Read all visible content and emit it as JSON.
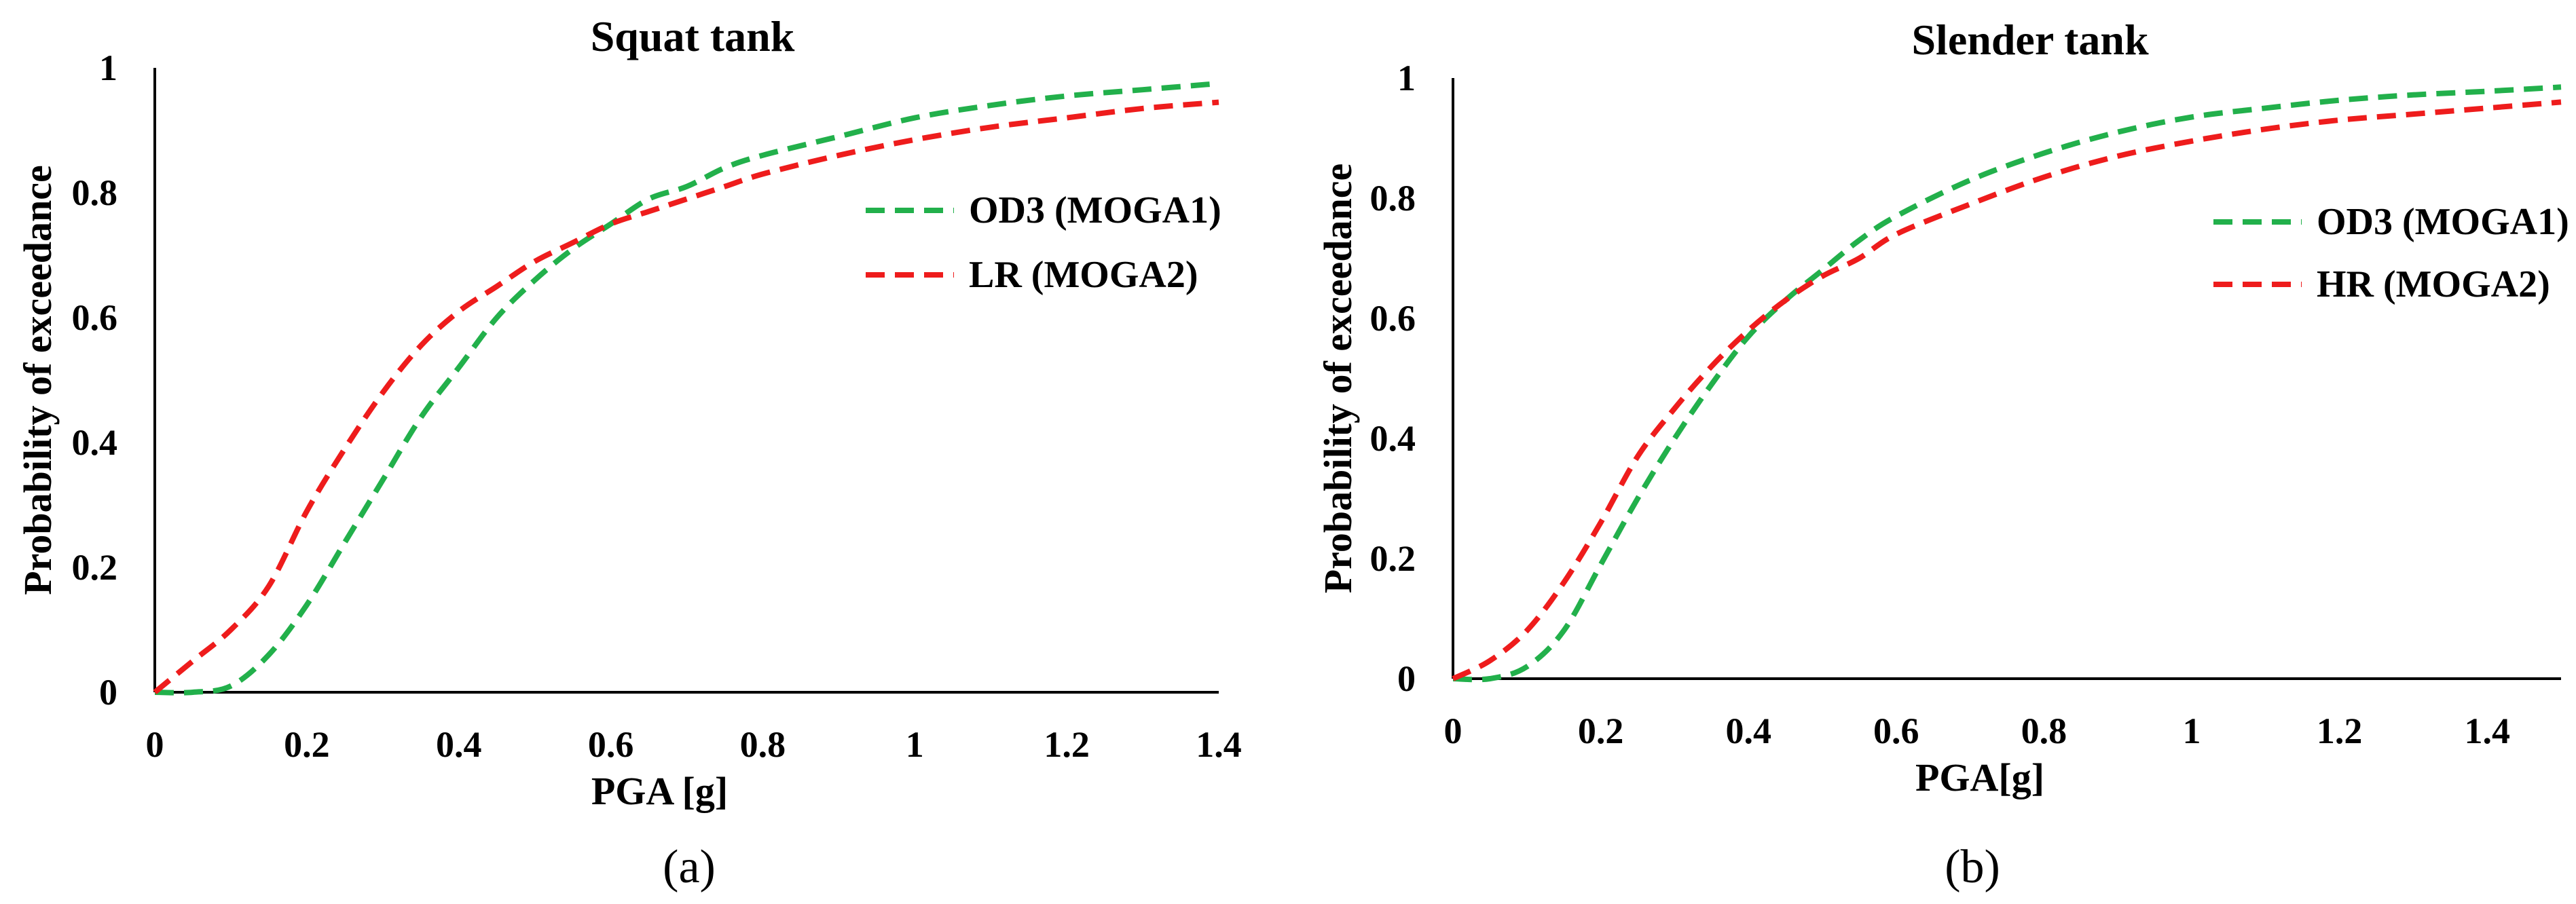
{
  "chart_data": [
    {
      "type": "line",
      "panel_label": "(a)",
      "title": "Squat tank",
      "xlabel": "PGA [g]",
      "ylabel": "Probability of exceedance",
      "xlim": [
        0,
        1.4
      ],
      "ylim": [
        0,
        1
      ],
      "x_ticks": [
        "0",
        "0.2",
        "0.4",
        "0.6",
        "0.8",
        "1",
        "1.2",
        "1.4"
      ],
      "y_ticks": [
        "0",
        "0.2",
        "0.4",
        "0.6",
        "0.8",
        "1"
      ],
      "legend_position": "right",
      "series": [
        {
          "name": "OD3 (MOGA1)",
          "color": "#22b04b",
          "x": [
            0,
            0.05,
            0.1,
            0.15,
            0.2,
            0.25,
            0.3,
            0.35,
            0.4,
            0.45,
            0.5,
            0.55,
            0.6,
            0.65,
            0.7,
            0.75,
            0.8,
            0.9,
            1.0,
            1.1,
            1.2,
            1.3,
            1.4
          ],
          "y": [
            0,
            0.0,
            0.01,
            0.06,
            0.14,
            0.24,
            0.34,
            0.44,
            0.52,
            0.6,
            0.66,
            0.71,
            0.75,
            0.79,
            0.81,
            0.84,
            0.86,
            0.89,
            0.92,
            0.94,
            0.955,
            0.965,
            0.975
          ]
        },
        {
          "name": "LR (MOGA2)",
          "color": "#ee1c1c",
          "x": [
            0,
            0.05,
            0.1,
            0.15,
            0.2,
            0.25,
            0.3,
            0.35,
            0.4,
            0.45,
            0.5,
            0.55,
            0.6,
            0.65,
            0.7,
            0.75,
            0.8,
            0.9,
            1.0,
            1.1,
            1.2,
            1.3,
            1.4
          ],
          "y": [
            0,
            0.05,
            0.1,
            0.17,
            0.29,
            0.39,
            0.48,
            0.555,
            0.61,
            0.65,
            0.69,
            0.72,
            0.75,
            0.77,
            0.79,
            0.81,
            0.83,
            0.86,
            0.885,
            0.905,
            0.92,
            0.935,
            0.945
          ]
        }
      ]
    },
    {
      "type": "line",
      "panel_label": "(b)",
      "title": "Slender tank",
      "xlabel": "PGA[g]",
      "ylabel": "Probability of exceedance",
      "xlim": [
        0,
        1.5
      ],
      "ylim": [
        0,
        1
      ],
      "x_ticks": [
        "0",
        "0.2",
        "0.4",
        "0.6",
        "0.8",
        "1",
        "1.2",
        "1.4"
      ],
      "y_ticks": [
        "0",
        "0.2",
        "0.4",
        "0.6",
        "0.8",
        "1"
      ],
      "legend_position": "right",
      "series": [
        {
          "name": "OD3 (MOGA1)",
          "color": "#22b04b",
          "x": [
            0,
            0.05,
            0.1,
            0.15,
            0.2,
            0.25,
            0.3,
            0.35,
            0.4,
            0.45,
            0.5,
            0.55,
            0.6,
            0.7,
            0.8,
            0.9,
            1.0,
            1.1,
            1.2,
            1.3,
            1.4,
            1.5
          ],
          "y": [
            0,
            0.0,
            0.02,
            0.08,
            0.19,
            0.3,
            0.4,
            0.49,
            0.57,
            0.63,
            0.68,
            0.73,
            0.77,
            0.83,
            0.875,
            0.91,
            0.935,
            0.95,
            0.963,
            0.972,
            0.978,
            0.985
          ]
        },
        {
          "name": "HR (MOGA2)",
          "color": "#ee1c1c",
          "x": [
            0,
            0.05,
            0.1,
            0.15,
            0.2,
            0.25,
            0.3,
            0.35,
            0.4,
            0.45,
            0.5,
            0.55,
            0.6,
            0.7,
            0.8,
            0.9,
            1.0,
            1.1,
            1.2,
            1.3,
            1.4,
            1.5
          ],
          "y": [
            0,
            0.03,
            0.08,
            0.16,
            0.26,
            0.37,
            0.45,
            0.52,
            0.58,
            0.63,
            0.67,
            0.7,
            0.74,
            0.79,
            0.835,
            0.87,
            0.895,
            0.915,
            0.93,
            0.94,
            0.95,
            0.96
          ]
        }
      ]
    }
  ]
}
